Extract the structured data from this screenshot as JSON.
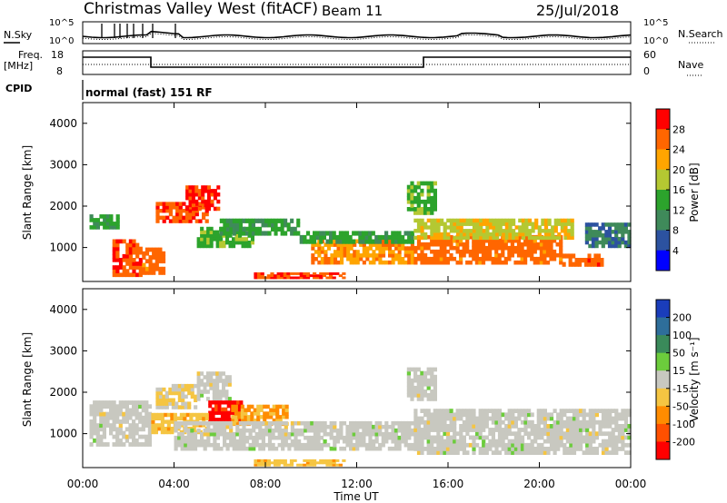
{
  "header": {
    "title": "Christmas Valley West (fitACF)",
    "beam": "Beam 11",
    "date": "25/Jul/2018"
  },
  "top_panels": {
    "nsky_label": "N.Sky",
    "nsearch_label": "N.Search",
    "noise_ticks": [
      "10^5",
      "10^0"
    ],
    "freq_label_1": "Freq.",
    "freq_label_2": "[MHz]",
    "freq_ticks": [
      "18",
      "8"
    ],
    "nave_label": "Nave",
    "nave_ticks": [
      "60",
      "0"
    ],
    "cpid_label": "CPID",
    "cpid_text": "normal (fast) 151 RF"
  },
  "axis": {
    "ylabel": "Slant Range [km]",
    "y_ticks": [
      "1000",
      "2000",
      "3000",
      "4000"
    ],
    "x_ticks": [
      "00:00",
      "04:00",
      "08:00",
      "12:00",
      "16:00",
      "20:00",
      "00:00"
    ],
    "xlabel": "Time UT"
  },
  "colorbars": {
    "power": {
      "label": "Power [dB]",
      "ticks": [
        "4",
        "8",
        "12",
        "16",
        "20",
        "24",
        "28"
      ],
      "colors": [
        "#0000ff",
        "#2c52a0",
        "#3f8a5a",
        "#2ca32c",
        "#b4c832",
        "#ffa500",
        "#ff6600",
        "#ff0000"
      ]
    },
    "velocity": {
      "label": "Velocity [m s⁻¹]",
      "ticks": [
        "200",
        "100",
        "50",
        "15",
        "-15",
        "-50",
        "-100",
        "-200"
      ],
      "colors": [
        "#1a3dbb",
        "#2e6e9a",
        "#3a8a5a",
        "#6ccc3c",
        "#c8c8c0",
        "#f5c542",
        "#ff8c00",
        "#ff5000",
        "#ff0000"
      ]
    }
  },
  "chart_data": [
    {
      "type": "heatmap",
      "title": "",
      "xlabel": "Time UT",
      "ylabel": "Slant Range [km]",
      "xlim": [
        0,
        24
      ],
      "ylim": [
        180,
        4500
      ],
      "colorbar_label": "Power [dB]",
      "colorbar_range": [
        0,
        30
      ],
      "blobs": [
        {
          "t0": 0.3,
          "t1": 1.6,
          "r0": 1450,
          "r1": 1800,
          "value": 12
        },
        {
          "t0": 1.3,
          "t1": 2.6,
          "r0": 300,
          "r1": 1200,
          "value": 26
        },
        {
          "t0": 2.6,
          "t1": 3.6,
          "r0": 350,
          "r1": 1000,
          "value": 24
        },
        {
          "t0": 3.2,
          "t1": 5.5,
          "r0": 1600,
          "r1": 2100,
          "value": 26
        },
        {
          "t0": 4.5,
          "t1": 6.0,
          "r0": 1900,
          "r1": 2500,
          "value": 27
        },
        {
          "t0": 5.0,
          "t1": 7.5,
          "r0": 1000,
          "r1": 1500,
          "value": 14
        },
        {
          "t0": 6.0,
          "t1": 9.5,
          "r0": 1300,
          "r1": 1700,
          "value": 12
        },
        {
          "t0": 7.5,
          "t1": 11.5,
          "r0": 250,
          "r1": 400,
          "value": 26
        },
        {
          "t0": 10.0,
          "t1": 14.5,
          "r0": 600,
          "r1": 1200,
          "value": 22
        },
        {
          "t0": 9.5,
          "t1": 14.5,
          "r0": 1100,
          "r1": 1400,
          "value": 12
        },
        {
          "t0": 14.5,
          "t1": 21.0,
          "r0": 600,
          "r1": 1300,
          "value": 24
        },
        {
          "t0": 14.5,
          "t1": 21.5,
          "r0": 1200,
          "r1": 1700,
          "value": 18
        },
        {
          "t0": 21.0,
          "t1": 22.8,
          "r0": 550,
          "r1": 850,
          "value": 25
        },
        {
          "t0": 22.0,
          "t1": 24.0,
          "r0": 1000,
          "r1": 1600,
          "value": 8
        },
        {
          "t0": 14.2,
          "t1": 15.5,
          "r0": 1800,
          "r1": 2600,
          "value": 14
        }
      ]
    },
    {
      "type": "heatmap",
      "title": "",
      "xlabel": "Time UT",
      "ylabel": "Slant Range [km]",
      "xlim": [
        0,
        24
      ],
      "ylim": [
        180,
        4500
      ],
      "colorbar_label": "Velocity [m s⁻¹]",
      "colorbar_range": [
        -250,
        250
      ],
      "blobs": [
        {
          "t0": 0.3,
          "t1": 3.0,
          "r0": 700,
          "r1": 1800,
          "value": 0
        },
        {
          "t0": 3.2,
          "t1": 5.0,
          "r0": 1600,
          "r1": 2200,
          "value": -30
        },
        {
          "t0": 5.0,
          "t1": 6.5,
          "r0": 1800,
          "r1": 2500,
          "value": 0
        },
        {
          "t0": 5.5,
          "t1": 7.0,
          "r0": 1300,
          "r1": 1800,
          "value": -220
        },
        {
          "t0": 6.5,
          "t1": 9.0,
          "r0": 1200,
          "r1": 1700,
          "value": -90
        },
        {
          "t0": 3.0,
          "t1": 5.5,
          "r0": 1000,
          "r1": 1500,
          "value": -60
        },
        {
          "t0": 4.0,
          "t1": 14.5,
          "r0": 600,
          "r1": 1300,
          "value": 0
        },
        {
          "t0": 7.5,
          "t1": 11.5,
          "r0": 220,
          "r1": 380,
          "value": -60
        },
        {
          "t0": 14.5,
          "t1": 24.0,
          "r0": 500,
          "r1": 1600,
          "value": 0
        },
        {
          "t0": 14.2,
          "t1": 15.5,
          "r0": 1800,
          "r1": 2600,
          "value": 0
        }
      ]
    }
  ]
}
